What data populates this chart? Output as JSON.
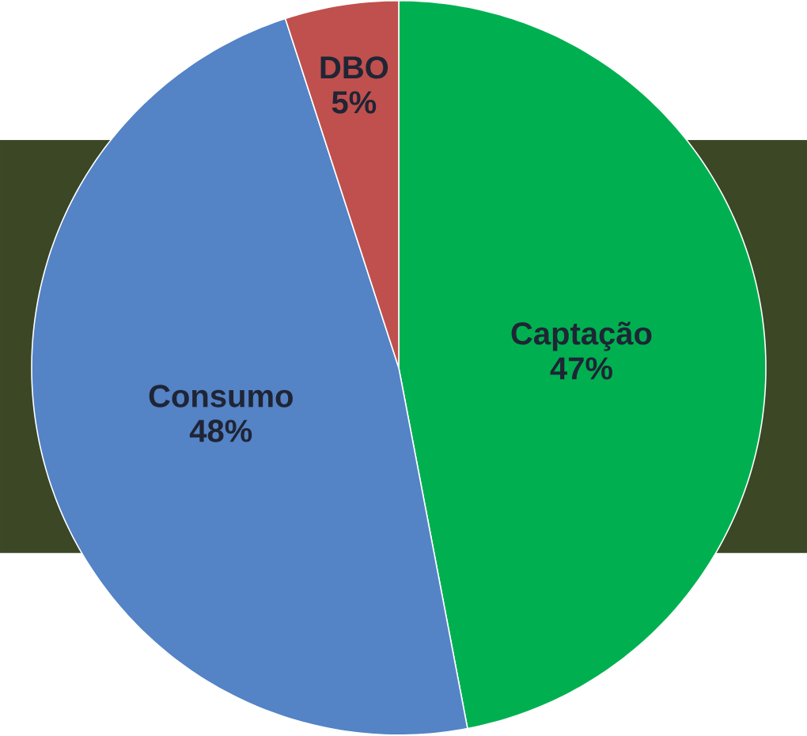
{
  "chart_data": {
    "type": "pie",
    "categories": [
      "Captação",
      "Consumo",
      "DBO"
    ],
    "values": [
      47,
      48,
      5
    ],
    "value_labels": [
      "47%",
      "48%",
      "5%"
    ],
    "colors": [
      "#00b050",
      "#5483c6",
      "#c0504d"
    ]
  }
}
